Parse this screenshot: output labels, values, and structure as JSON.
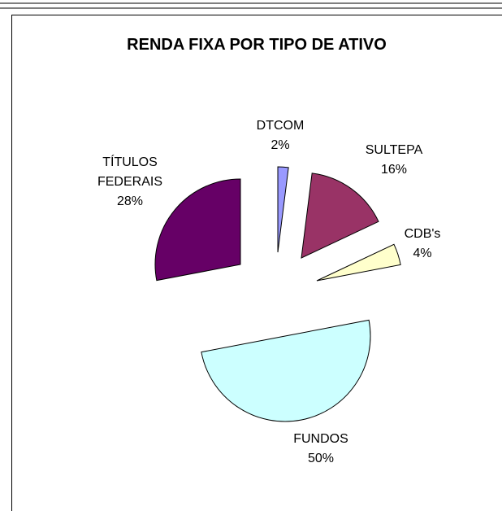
{
  "chart_data": {
    "type": "pie",
    "title": "RENDA FIXA POR TIPO DE ATIVO",
    "categories": [
      "DTCOM",
      "SULTEPA",
      "CDB's",
      "FUNDOS",
      "TÍTULOS FEDERAIS"
    ],
    "values": [
      2,
      16,
      4,
      50,
      28
    ],
    "value_labels": [
      "2%",
      "16%",
      "4%",
      "50%",
      "28%"
    ],
    "colors": [
      "#9999ff",
      "#993366",
      "#ffffcc",
      "#ccffff",
      "#660066"
    ]
  }
}
